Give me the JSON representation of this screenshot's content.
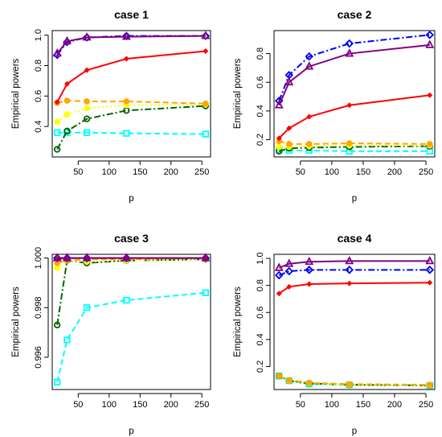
{
  "chart_data": [
    {
      "type": "line",
      "title": "case 1",
      "xlabel": "p",
      "ylabel": "Empirical powers",
      "x": [
        16,
        32,
        64,
        128,
        256
      ],
      "xlim": [
        8,
        264
      ],
      "ylim": [
        0.2,
        1.03
      ],
      "xticks": [
        50,
        100,
        150,
        200,
        250
      ],
      "yticks": [
        0.4,
        0.6,
        0.8,
        1.0
      ],
      "ytick_labels": [
        "0.4",
        "0.6",
        "0.8",
        "1.0"
      ],
      "series": [
        {
          "color": "#800080",
          "marker": "triangle",
          "dash": "solid",
          "values": [
            0.88,
            0.96,
            0.985,
            0.99,
            0.995
          ]
        },
        {
          "color": "#0000ff",
          "marker": "diamond",
          "dash": "dashdot",
          "values": [
            0.87,
            0.955,
            0.985,
            0.995,
            0.995
          ]
        },
        {
          "color": "#ff0000",
          "marker": "filled-diamond",
          "dash": "solid",
          "values": [
            0.56,
            0.68,
            0.77,
            0.845,
            0.895
          ]
        },
        {
          "color": "#ffa500",
          "marker": "filled-circle",
          "dash": "dashed",
          "values": [
            0.555,
            0.57,
            0.565,
            0.565,
            0.55
          ]
        },
        {
          "color": "#ffff00",
          "marker": "filled-circle",
          "dash": "dotted",
          "values": [
            0.43,
            0.48,
            0.52,
            0.54,
            0.545
          ]
        },
        {
          "color": "#006400",
          "marker": "circle",
          "dash": "dashdot",
          "values": [
            0.25,
            0.37,
            0.45,
            0.505,
            0.535
          ]
        },
        {
          "color": "#00ffff",
          "marker": "square",
          "dash": "dashed",
          "values": [
            0.36,
            0.36,
            0.36,
            0.355,
            0.35
          ]
        }
      ]
    },
    {
      "type": "line",
      "title": "case 2",
      "xlabel": "p",
      "ylabel": "Empirical powers",
      "x": [
        16,
        32,
        64,
        128,
        256
      ],
      "xlim": [
        8,
        264
      ],
      "ylim": [
        0.08,
        0.96
      ],
      "xticks": [
        50,
        100,
        150,
        200,
        250
      ],
      "yticks": [
        0.2,
        0.4,
        0.6,
        0.8
      ],
      "ytick_labels": [
        "0.2",
        "0.4",
        "0.6",
        "0.8"
      ],
      "series": [
        {
          "color": "#800080",
          "marker": "triangle",
          "dash": "solid",
          "values": [
            0.44,
            0.6,
            0.71,
            0.8,
            0.86
          ]
        },
        {
          "color": "#0000ff",
          "marker": "diamond",
          "dash": "dashdot",
          "values": [
            0.47,
            0.65,
            0.78,
            0.87,
            0.93
          ]
        },
        {
          "color": "#ff0000",
          "marker": "filled-diamond",
          "dash": "solid",
          "values": [
            0.21,
            0.28,
            0.36,
            0.44,
            0.51
          ]
        },
        {
          "color": "#ffa500",
          "marker": "filled-circle",
          "dash": "dashed",
          "values": [
            0.19,
            0.17,
            0.17,
            0.175,
            0.17
          ]
        },
        {
          "color": "#ffff00",
          "marker": "filled-circle",
          "dash": "dotted",
          "values": [
            0.15,
            0.15,
            0.155,
            0.16,
            0.16
          ]
        },
        {
          "color": "#006400",
          "marker": "circle",
          "dash": "dashdot",
          "values": [
            0.12,
            0.14,
            0.145,
            0.15,
            0.155
          ]
        },
        {
          "color": "#00ffff",
          "marker": "square",
          "dash": "dashed",
          "values": [
            0.13,
            0.125,
            0.125,
            0.12,
            0.12
          ]
        }
      ]
    },
    {
      "type": "line",
      "title": "case 3",
      "xlabel": "p",
      "ylabel": "Empirical powers",
      "x": [
        16,
        32,
        64,
        128,
        256
      ],
      "xlim": [
        8,
        264
      ],
      "ylim": [
        0.9947,
        1.00015
      ],
      "xticks": [
        50,
        100,
        150,
        200,
        250
      ],
      "yticks": [
        0.996,
        0.998,
        1.0
      ],
      "ytick_labels": [
        "0.996",
        "0.998",
        "1.000"
      ],
      "series": [
        {
          "color": "#800080",
          "marker": "triangle",
          "dash": "solid",
          "values": [
            1.0,
            1.0,
            1.0,
            1.0,
            1.0
          ]
        },
        {
          "color": "#0000ff",
          "marker": "diamond",
          "dash": "dashdot",
          "values": [
            1.0,
            1.0,
            1.0,
            1.0,
            1.0
          ]
        },
        {
          "color": "#ff0000",
          "marker": "filled-diamond",
          "dash": "solid",
          "values": [
            0.99995,
            1.0,
            1.0,
            1.0,
            1.0
          ]
        },
        {
          "color": "#ffa500",
          "marker": "filled-circle",
          "dash": "dashed",
          "values": [
            0.9998,
            0.9999,
            0.99995,
            0.99995,
            1.0
          ]
        },
        {
          "color": "#ffff00",
          "marker": "filled-circle",
          "dash": "dotted",
          "values": [
            0.9996,
            0.9999,
            0.99985,
            0.9999,
            0.99995
          ]
        },
        {
          "color": "#006400",
          "marker": "circle",
          "dash": "dashdot",
          "values": [
            0.9973,
            0.9999,
            0.9998,
            0.9999,
            0.99995
          ]
        },
        {
          "color": "#00ffff",
          "marker": "square",
          "dash": "dashed",
          "values": [
            0.995,
            0.9967,
            0.998,
            0.9983,
            0.9986
          ]
        }
      ]
    },
    {
      "type": "line",
      "title": "case 4",
      "xlabel": "p",
      "ylabel": "Empirical powers",
      "x": [
        16,
        32,
        64,
        128,
        256
      ],
      "xlim": [
        8,
        264
      ],
      "ylim": [
        0.03,
        1.03
      ],
      "xticks": [
        50,
        100,
        150,
        200,
        250
      ],
      "yticks": [
        0.2,
        0.4,
        0.6,
        0.8,
        1.0
      ],
      "ytick_labels": [
        "0.2",
        "0.4",
        "0.6",
        "0.8",
        "1.0"
      ],
      "series": [
        {
          "color": "#800080",
          "marker": "triangle",
          "dash": "solid",
          "values": [
            0.93,
            0.96,
            0.975,
            0.98,
            0.98
          ]
        },
        {
          "color": "#0000ff",
          "marker": "diamond",
          "dash": "dashdot",
          "values": [
            0.875,
            0.905,
            0.915,
            0.915,
            0.915
          ]
        },
        {
          "color": "#ff0000",
          "marker": "filled-diamond",
          "dash": "solid",
          "values": [
            0.74,
            0.79,
            0.81,
            0.815,
            0.82
          ]
        },
        {
          "color": "#ffa500",
          "marker": "filled-circle",
          "dash": "dashed",
          "values": [
            0.13,
            0.1,
            0.08,
            0.07,
            0.065
          ]
        },
        {
          "color": "#ffff00",
          "marker": "filled-circle",
          "dash": "dotted",
          "values": [
            0.13,
            0.095,
            0.075,
            0.065,
            0.06
          ]
        },
        {
          "color": "#006400",
          "marker": "circle",
          "dash": "dashdot",
          "values": [
            0.13,
            0.095,
            0.075,
            0.065,
            0.06
          ]
        },
        {
          "color": "#00ffff",
          "marker": "square",
          "dash": "dashed",
          "values": [
            0.13,
            0.095,
            0.07,
            0.065,
            0.06
          ]
        }
      ]
    }
  ]
}
